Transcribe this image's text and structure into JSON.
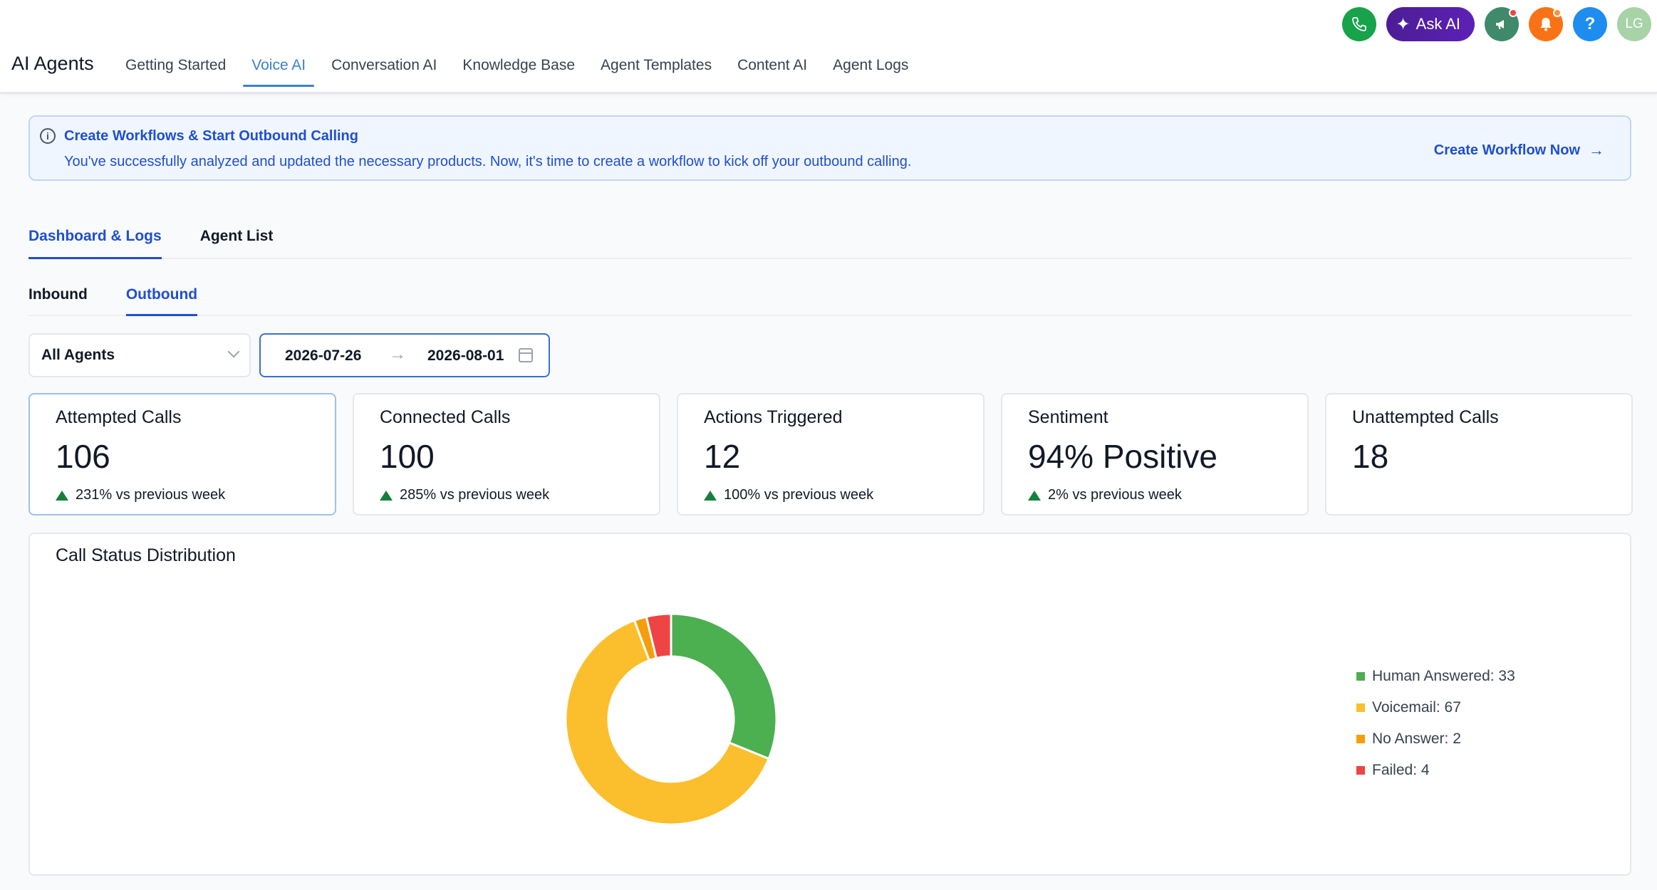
{
  "app": {
    "title": "AI Agents"
  },
  "nav": [
    {
      "label": "Getting Started",
      "active": false
    },
    {
      "label": "Voice AI",
      "active": true
    },
    {
      "label": "Conversation AI",
      "active": false
    },
    {
      "label": "Knowledge Base",
      "active": false
    },
    {
      "label": "Agent Templates",
      "active": false
    },
    {
      "label": "Content AI",
      "active": false
    },
    {
      "label": "Agent Logs",
      "active": false
    }
  ],
  "topbar": {
    "ask_ai_label": "Ask AI",
    "help_glyph": "?",
    "avatar_initials": "LG",
    "icons": [
      "phone-icon",
      "sparkle-icon",
      "megaphone-icon",
      "bell-icon",
      "help-icon"
    ]
  },
  "banner": {
    "title": "Create Workflows & Start Outbound Calling",
    "text": "You've successfully analyzed and updated the necessary products. Now, it's time to create a workflow to kick off your outbound calling.",
    "link": "Create Workflow Now"
  },
  "tabs": [
    {
      "label": "Dashboard & Logs",
      "active": true
    },
    {
      "label": "Agent List",
      "active": false
    }
  ],
  "subtabs": [
    {
      "label": "Inbound",
      "active": false
    },
    {
      "label": "Outbound",
      "active": true
    }
  ],
  "filters": {
    "agent": "All Agents",
    "date_start": "2026-07-26",
    "date_end": "2026-08-01"
  },
  "cards": [
    {
      "label": "Attempted Calls",
      "value": "106",
      "delta": "231% vs previous week"
    },
    {
      "label": "Connected Calls",
      "value": "100",
      "delta": "285% vs previous week"
    },
    {
      "label": "Actions Triggered",
      "value": "12",
      "delta": "100% vs previous week"
    },
    {
      "label": "Sentiment",
      "value": "94% Positive",
      "delta": "2% vs previous week"
    },
    {
      "label": "Unattempted Calls",
      "value": "18",
      "delta": ""
    }
  ],
  "chart_data": {
    "type": "pie",
    "title": "Call Status Distribution",
    "categories": [
      "Human Answered",
      "Voicemail",
      "No Answer",
      "Failed"
    ],
    "values": [
      33,
      67,
      2,
      4
    ],
    "legend_labels": [
      "Human Answered: 33",
      "Voicemail: 67",
      "No Answer: 2",
      "Failed: 4"
    ],
    "colors": [
      "#4caf50",
      "#fbbf2d",
      "#f59e0b",
      "#ef4444"
    ],
    "legend": "right"
  }
}
